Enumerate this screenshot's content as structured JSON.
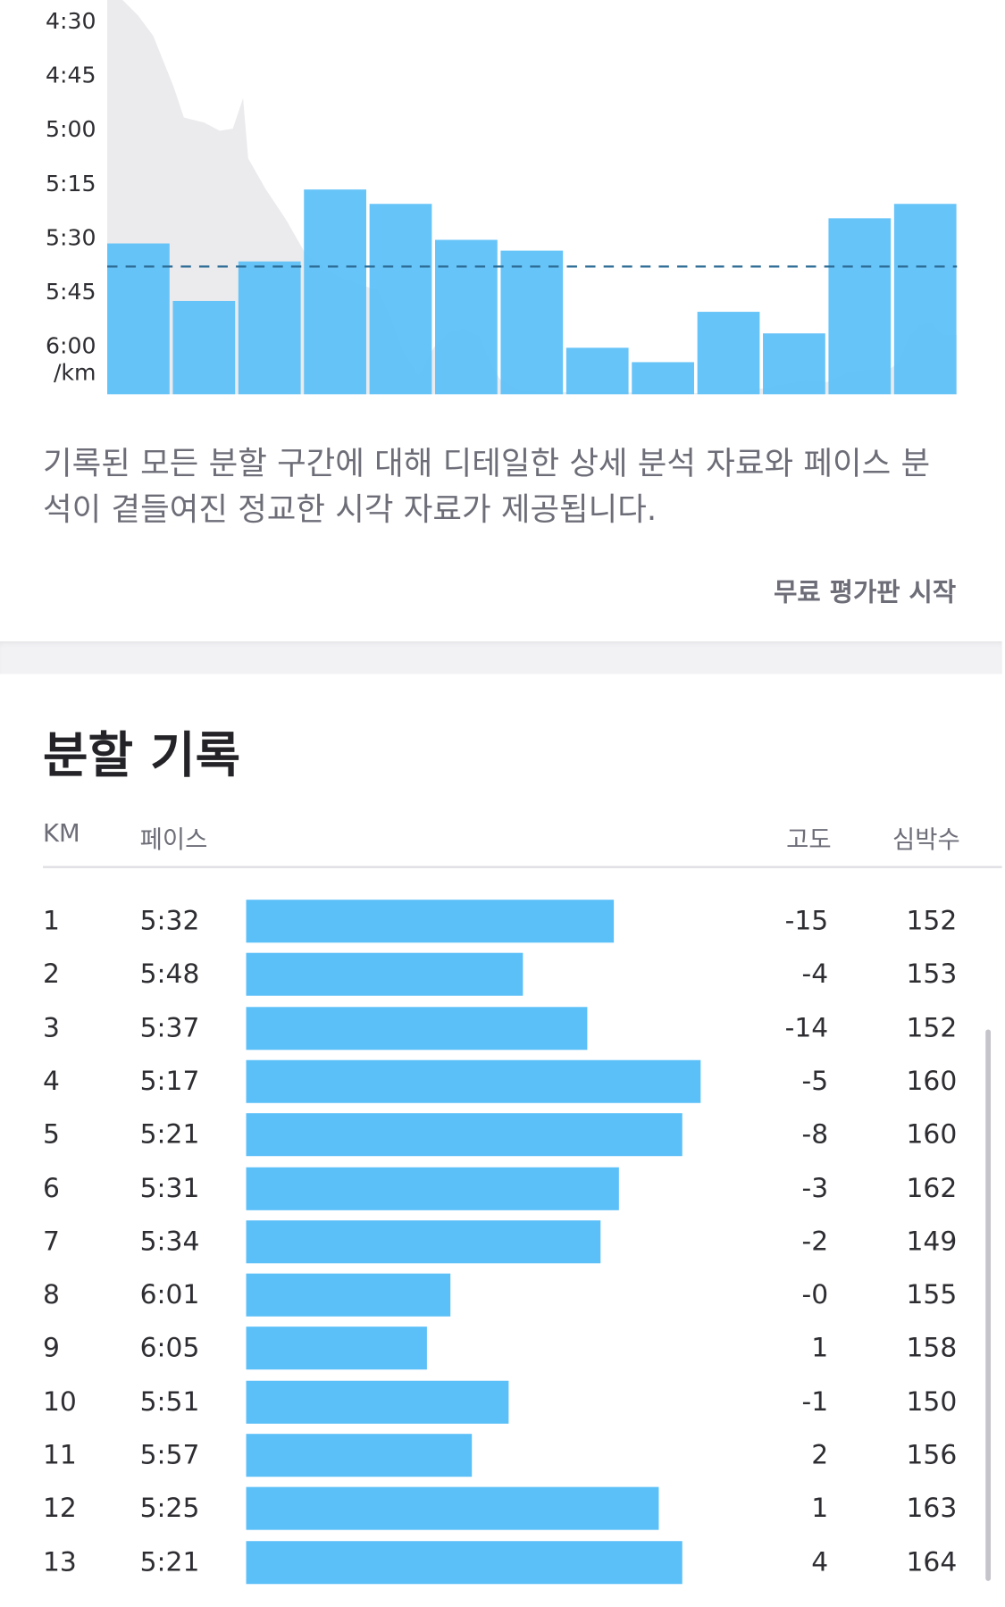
{
  "chart_data": {
    "type": "bar",
    "y_axis_labels": [
      "4:30",
      "4:45",
      "5:00",
      "5:15",
      "5:30",
      "5:45",
      "6:00"
    ],
    "y_unit": "/km",
    "categories": [
      "1",
      "2",
      "3",
      "4",
      "5",
      "6",
      "7",
      "8",
      "9",
      "10",
      "11",
      "12",
      "13"
    ],
    "pace_seconds_per_km": [
      332,
      348,
      337,
      317,
      321,
      331,
      334,
      361,
      365,
      351,
      357,
      325,
      321
    ],
    "average_pace_line": "5:38",
    "ylim": [
      "6:10",
      "4:20"
    ],
    "bar_color": "#5bbff8",
    "average_line_color": "#2a6a93",
    "elevation_area_color": "#ebebee"
  },
  "description": "기록된 모든 분할 구간에 대해 디테일한 상세 분석 자료와 페이스 분석이 곁들여진 정교한 시각 자료가 제공됩니다.",
  "cta_label": "무료 평가판 시작",
  "splits": {
    "title": "분할 기록",
    "headers": {
      "km": "KM",
      "pace": "페이스",
      "elevation": "고도",
      "heart_rate": "심박수"
    },
    "rows": [
      {
        "km": "1",
        "pace": "5:32",
        "elevation": "-15",
        "heart_rate": "152",
        "speed_fraction": 0.7655
      },
      {
        "km": "2",
        "pace": "5:48",
        "elevation": "-4",
        "heart_rate": "153",
        "speed_fraction": 0.5764
      },
      {
        "km": "3",
        "pace": "5:37",
        "elevation": "-14",
        "heart_rate": "152",
        "speed_fraction": 0.7097
      },
      {
        "km": "4",
        "pace": "5:17",
        "elevation": "-5",
        "heart_rate": "160",
        "speed_fraction": 0.9476
      },
      {
        "km": "5",
        "pace": "5:21",
        "elevation": "-8",
        "heart_rate": "160",
        "speed_fraction": 0.9087
      },
      {
        "km": "6",
        "pace": "5:31",
        "elevation": "-3",
        "heart_rate": "162",
        "speed_fraction": 0.7756
      },
      {
        "km": "7",
        "pace": "5:34",
        "elevation": "-2",
        "heart_rate": "149",
        "speed_fraction": 0.7378
      },
      {
        "km": "8",
        "pace": "6:01",
        "elevation": "-0",
        "heart_rate": "155",
        "speed_fraction": 0.4245
      },
      {
        "km": "9",
        "pace": "6:05",
        "elevation": "1",
        "heart_rate": "158",
        "speed_fraction": 0.377
      },
      {
        "km": "10",
        "pace": "5:51",
        "elevation": "-1",
        "heart_rate": "150",
        "speed_fraction": 0.5468
      },
      {
        "km": "11",
        "pace": "5:57",
        "elevation": "2",
        "heart_rate": "156",
        "speed_fraction": 0.471
      },
      {
        "km": "12",
        "pace": "5:25",
        "elevation": "1",
        "heart_rate": "163",
        "speed_fraction": 0.8601
      },
      {
        "km": "13",
        "pace": "5:21",
        "elevation": "4",
        "heart_rate": "164",
        "speed_fraction": 0.9087
      }
    ]
  }
}
